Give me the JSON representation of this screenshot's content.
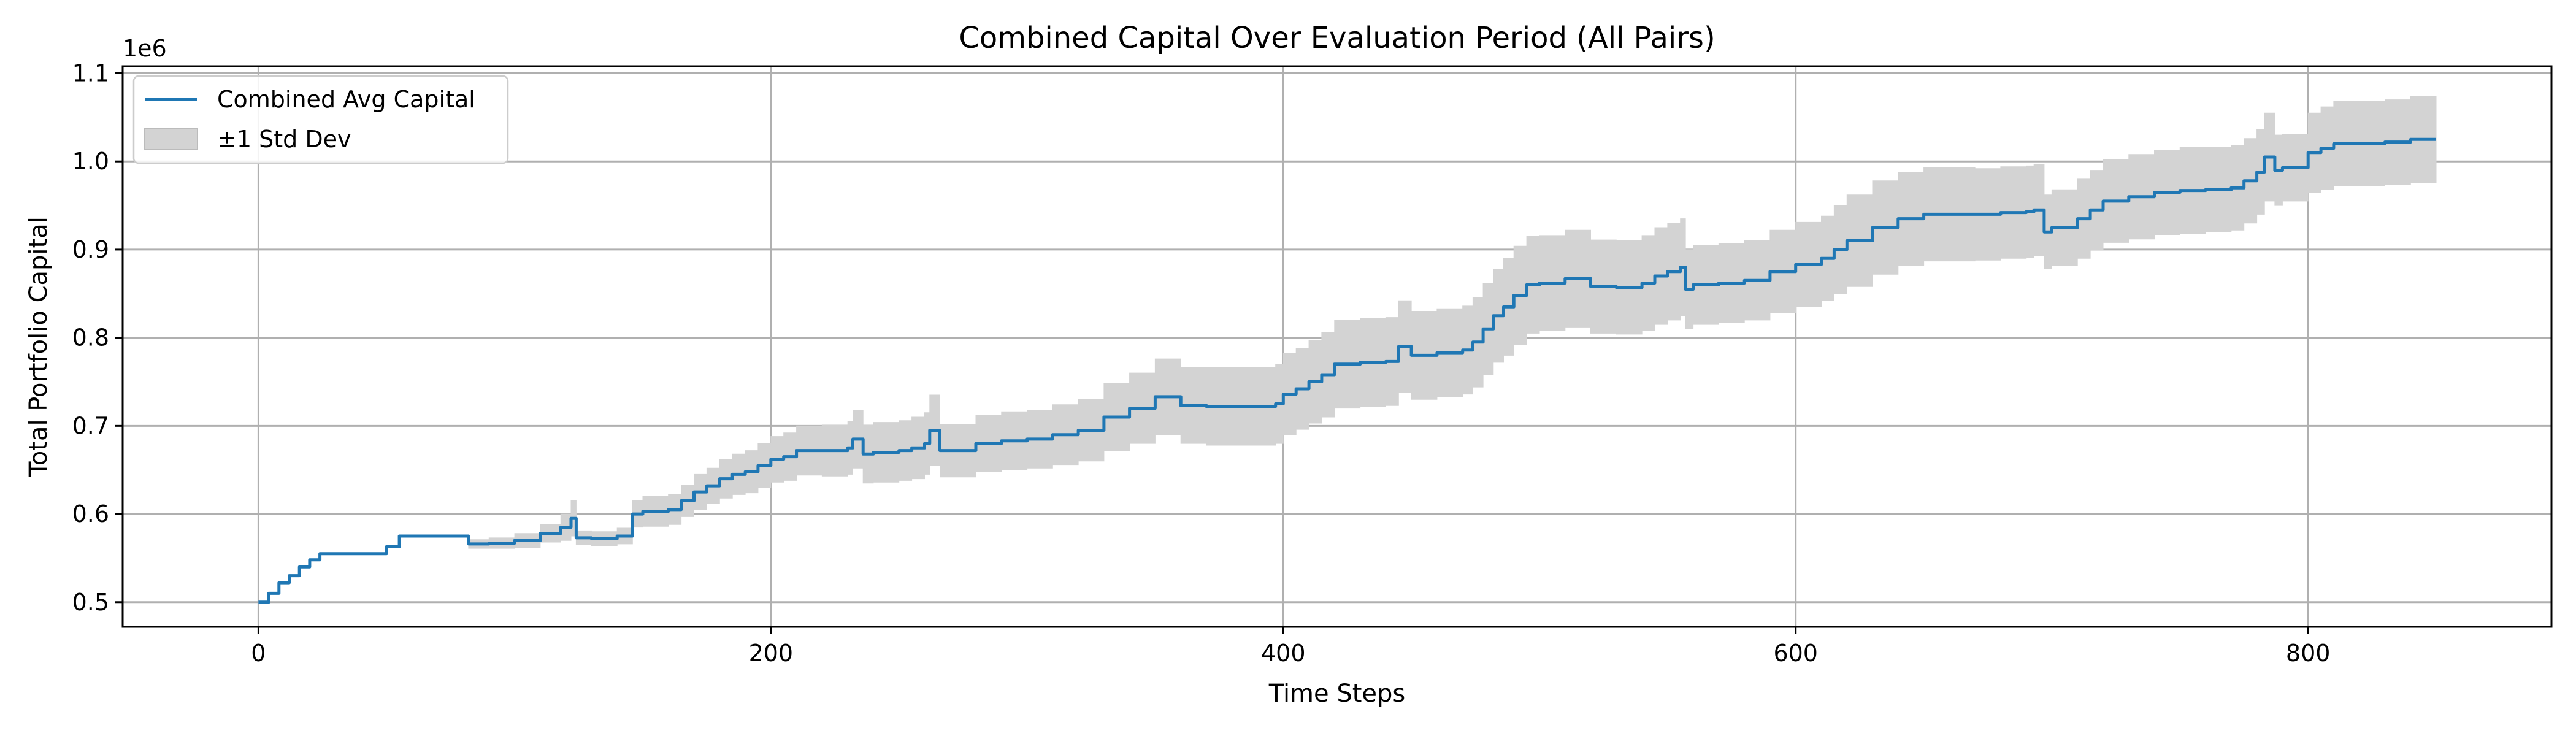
{
  "chart_data": {
    "type": "line",
    "title": "Combined Capital Over Evaluation Period (All Pairs)",
    "xlabel": "Time Steps",
    "ylabel": "Total Portfolio Capital",
    "y_offset_label": "1e6",
    "xlim": [
      -53,
      895
    ],
    "ylim": [
      0.472,
      1.108
    ],
    "xticks": [
      0,
      200,
      400,
      600,
      800
    ],
    "xtick_labels": [
      "0",
      "200",
      "400",
      "600",
      "800"
    ],
    "yticks": [
      0.5,
      0.6,
      0.7,
      0.8,
      0.9,
      1.0,
      1.1
    ],
    "ytick_labels": [
      "0.5",
      "0.6",
      "0.7",
      "0.8",
      "0.9",
      "1.0",
      "1.1"
    ],
    "grid": true,
    "legend_position": "upper-left",
    "legend": [
      "Combined Avg Capital",
      "±1 Std Dev"
    ],
    "colors": {
      "line": "#1f77b4",
      "band": "#d3d3d3",
      "grid": "#b0b0b0",
      "axis": "#000000"
    },
    "series": [
      {
        "name": "Combined Avg Capital",
        "x": [
          0,
          4,
          8,
          12,
          16,
          20,
          24,
          30,
          40,
          50,
          55,
          60,
          70,
          80,
          82,
          90,
          100,
          110,
          118,
          122,
          124,
          130,
          140,
          146,
          150,
          160,
          165,
          170,
          175,
          180,
          185,
          190,
          195,
          200,
          205,
          210,
          220,
          230,
          232,
          236,
          240,
          250,
          255,
          260,
          262,
          266,
          270,
          280,
          290,
          300,
          310,
          320,
          330,
          340,
          350,
          360,
          370,
          380,
          390,
          397,
          400,
          405,
          410,
          415,
          420,
          430,
          440,
          445,
          450,
          460,
          470,
          474,
          478,
          482,
          486,
          490,
          495,
          500,
          510,
          520,
          530,
          540,
          545,
          550,
          555,
          557,
          560,
          570,
          580,
          590,
          600,
          610,
          615,
          620,
          630,
          640,
          650,
          660,
          670,
          680,
          690,
          693,
          697,
          700,
          710,
          715,
          720,
          730,
          740,
          750,
          760,
          770,
          775,
          780,
          783,
          787,
          790,
          800,
          805,
          810,
          820,
          830,
          840,
          850
        ],
        "y": [
          0.5,
          0.51,
          0.522,
          0.53,
          0.54,
          0.548,
          0.555,
          0.555,
          0.555,
          0.563,
          0.575,
          0.575,
          0.575,
          0.575,
          0.566,
          0.567,
          0.57,
          0.578,
          0.585,
          0.595,
          0.573,
          0.572,
          0.575,
          0.6,
          0.603,
          0.605,
          0.615,
          0.625,
          0.632,
          0.64,
          0.645,
          0.648,
          0.655,
          0.662,
          0.665,
          0.672,
          0.672,
          0.675,
          0.685,
          0.668,
          0.67,
          0.672,
          0.675,
          0.68,
          0.695,
          0.672,
          0.672,
          0.68,
          0.683,
          0.685,
          0.69,
          0.695,
          0.71,
          0.72,
          0.733,
          0.723,
          0.722,
          0.722,
          0.722,
          0.725,
          0.736,
          0.742,
          0.75,
          0.758,
          0.77,
          0.772,
          0.773,
          0.79,
          0.78,
          0.783,
          0.786,
          0.795,
          0.81,
          0.825,
          0.835,
          0.848,
          0.86,
          0.862,
          0.867,
          0.858,
          0.857,
          0.862,
          0.87,
          0.875,
          0.88,
          0.855,
          0.86,
          0.862,
          0.865,
          0.875,
          0.883,
          0.89,
          0.9,
          0.91,
          0.925,
          0.935,
          0.94,
          0.94,
          0.94,
          0.942,
          0.943,
          0.945,
          0.92,
          0.925,
          0.935,
          0.945,
          0.955,
          0.96,
          0.965,
          0.967,
          0.968,
          0.97,
          0.978,
          0.988,
          1.005,
          0.99,
          0.993,
          1.01,
          1.015,
          1.02,
          1.02,
          1.022,
          1.025,
          1.025
        ]
      },
      {
        "name": "±1 Std Dev",
        "x": [
          0,
          4,
          8,
          12,
          16,
          20,
          24,
          30,
          40,
          50,
          55,
          60,
          70,
          80,
          82,
          90,
          100,
          110,
          118,
          122,
          124,
          130,
          140,
          146,
          150,
          160,
          165,
          170,
          175,
          180,
          185,
          190,
          195,
          200,
          205,
          210,
          220,
          230,
          232,
          236,
          240,
          250,
          255,
          260,
          262,
          266,
          270,
          280,
          290,
          300,
          310,
          320,
          330,
          340,
          350,
          360,
          370,
          380,
          390,
          397,
          400,
          405,
          410,
          415,
          420,
          430,
          440,
          445,
          450,
          460,
          470,
          474,
          478,
          482,
          486,
          490,
          495,
          500,
          510,
          520,
          530,
          540,
          545,
          550,
          555,
          557,
          560,
          570,
          580,
          590,
          600,
          610,
          615,
          620,
          630,
          640,
          650,
          660,
          670,
          680,
          690,
          693,
          697,
          700,
          710,
          715,
          720,
          730,
          740,
          750,
          760,
          770,
          775,
          780,
          783,
          787,
          790,
          800,
          805,
          810,
          820,
          830,
          840,
          850
        ],
        "lower": [
          0.5,
          0.51,
          0.522,
          0.53,
          0.54,
          0.548,
          0.555,
          0.555,
          0.555,
          0.563,
          0.575,
          0.575,
          0.575,
          0.575,
          0.561,
          0.561,
          0.562,
          0.568,
          0.57,
          0.575,
          0.565,
          0.564,
          0.566,
          0.585,
          0.586,
          0.588,
          0.597,
          0.605,
          0.612,
          0.618,
          0.622,
          0.624,
          0.63,
          0.636,
          0.638,
          0.644,
          0.643,
          0.645,
          0.652,
          0.635,
          0.636,
          0.638,
          0.64,
          0.645,
          0.655,
          0.642,
          0.642,
          0.648,
          0.65,
          0.652,
          0.656,
          0.66,
          0.672,
          0.68,
          0.69,
          0.68,
          0.678,
          0.678,
          0.678,
          0.68,
          0.69,
          0.696,
          0.703,
          0.71,
          0.72,
          0.722,
          0.723,
          0.738,
          0.73,
          0.733,
          0.736,
          0.744,
          0.758,
          0.772,
          0.78,
          0.792,
          0.805,
          0.808,
          0.812,
          0.805,
          0.804,
          0.808,
          0.815,
          0.82,
          0.825,
          0.81,
          0.815,
          0.817,
          0.82,
          0.828,
          0.835,
          0.842,
          0.85,
          0.858,
          0.872,
          0.882,
          0.887,
          0.887,
          0.888,
          0.89,
          0.891,
          0.893,
          0.878,
          0.882,
          0.89,
          0.9,
          0.908,
          0.912,
          0.917,
          0.918,
          0.92,
          0.922,
          0.93,
          0.94,
          0.955,
          0.95,
          0.955,
          0.965,
          0.968,
          0.972,
          0.972,
          0.974,
          0.976,
          0.976
        ],
        "upper": [
          0.5,
          0.51,
          0.522,
          0.53,
          0.54,
          0.548,
          0.555,
          0.555,
          0.555,
          0.563,
          0.575,
          0.575,
          0.575,
          0.575,
          0.571,
          0.573,
          0.578,
          0.588,
          0.6,
          0.615,
          0.581,
          0.58,
          0.584,
          0.615,
          0.62,
          0.622,
          0.633,
          0.645,
          0.652,
          0.662,
          0.668,
          0.672,
          0.68,
          0.688,
          0.692,
          0.7,
          0.701,
          0.705,
          0.718,
          0.701,
          0.704,
          0.706,
          0.71,
          0.715,
          0.735,
          0.702,
          0.702,
          0.712,
          0.716,
          0.718,
          0.724,
          0.73,
          0.748,
          0.76,
          0.776,
          0.766,
          0.766,
          0.766,
          0.766,
          0.77,
          0.782,
          0.788,
          0.797,
          0.806,
          0.82,
          0.822,
          0.823,
          0.842,
          0.83,
          0.833,
          0.836,
          0.846,
          0.862,
          0.878,
          0.89,
          0.904,
          0.915,
          0.916,
          0.922,
          0.911,
          0.91,
          0.916,
          0.925,
          0.93,
          0.935,
          0.9,
          0.905,
          0.907,
          0.91,
          0.922,
          0.931,
          0.938,
          0.95,
          0.962,
          0.978,
          0.988,
          0.993,
          0.993,
          0.992,
          0.994,
          0.995,
          0.997,
          0.962,
          0.968,
          0.98,
          0.99,
          1.002,
          1.008,
          1.013,
          1.016,
          1.016,
          1.018,
          1.026,
          1.036,
          1.055,
          1.03,
          1.031,
          1.055,
          1.062,
          1.068,
          1.068,
          1.07,
          1.074,
          1.074
        ]
      }
    ]
  }
}
